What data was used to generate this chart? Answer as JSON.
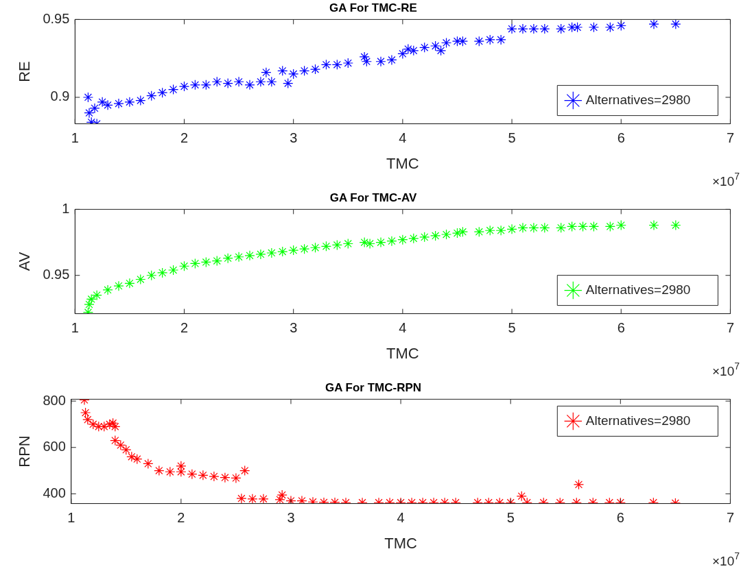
{
  "chart_data": [
    {
      "type": "scatter",
      "title": "GA For TMC-RE",
      "xlabel": "TMC",
      "ylabel": "RE",
      "xlim": [
        1,
        7
      ],
      "xticks": [
        1,
        2,
        3,
        4,
        5,
        6,
        7
      ],
      "ylim": [
        0.883,
        0.95
      ],
      "yticks": [
        0.9,
        0.95
      ],
      "grid": false,
      "legend": "bottom right",
      "marker": "cross",
      "annotations": [
        "×10$^{7}$"
      ],
      "series": [
        {
          "name": "Alternatives=2980",
          "color": "#0000ff",
          "x": [
            1.12,
            1.13,
            1.15,
            1.2,
            1.18,
            1.25,
            1.3,
            1.4,
            1.5,
            1.6,
            1.7,
            1.8,
            1.9,
            2.0,
            2.1,
            2.2,
            2.3,
            2.4,
            2.5,
            2.6,
            2.7,
            2.75,
            2.8,
            2.9,
            2.95,
            3.0,
            3.1,
            3.2,
            3.3,
            3.4,
            3.5,
            3.65,
            3.67,
            3.8,
            3.9,
            4.0,
            4.05,
            4.1,
            4.2,
            4.3,
            4.35,
            4.4,
            4.5,
            4.55,
            4.7,
            4.8,
            4.9,
            5.0,
            5.1,
            5.2,
            5.3,
            5.45,
            5.55,
            5.6,
            5.75,
            5.9,
            6.0,
            6.3,
            6.5
          ],
          "values": [
            0.9,
            0.89,
            0.884,
            0.883,
            0.893,
            0.897,
            0.895,
            0.896,
            0.897,
            0.898,
            0.901,
            0.903,
            0.905,
            0.907,
            0.908,
            0.908,
            0.91,
            0.909,
            0.91,
            0.908,
            0.91,
            0.916,
            0.91,
            0.917,
            0.909,
            0.915,
            0.917,
            0.918,
            0.921,
            0.921,
            0.922,
            0.926,
            0.923,
            0.923,
            0.924,
            0.928,
            0.931,
            0.93,
            0.932,
            0.933,
            0.93,
            0.935,
            0.936,
            0.936,
            0.936,
            0.937,
            0.937,
            0.944,
            0.944,
            0.944,
            0.944,
            0.944,
            0.945,
            0.945,
            0.945,
            0.945,
            0.946,
            0.947,
            0.947
          ]
        }
      ]
    },
    {
      "type": "scatter",
      "title": "GA For TMC-AV",
      "xlabel": "TMC",
      "ylabel": "AV",
      "xlim": [
        1,
        7
      ],
      "xticks": [
        1,
        2,
        3,
        4,
        5,
        6,
        7
      ],
      "ylim": [
        0.921,
        1
      ],
      "yticks": [
        0.95,
        1
      ],
      "grid": false,
      "legend": "bottom right",
      "marker": "cross",
      "annotations": [
        "×10$^{7}$"
      ],
      "series": [
        {
          "name": "Alternatives=2980",
          "color": "#00ff00",
          "x": [
            1.12,
            1.13,
            1.15,
            1.2,
            1.3,
            1.4,
            1.5,
            1.6,
            1.7,
            1.8,
            1.9,
            2.0,
            2.1,
            2.2,
            2.3,
            2.4,
            2.5,
            2.6,
            2.7,
            2.8,
            2.9,
            3.0,
            3.1,
            3.2,
            3.3,
            3.4,
            3.5,
            3.65,
            3.7,
            3.8,
            3.9,
            4.0,
            4.1,
            4.2,
            4.3,
            4.4,
            4.5,
            4.55,
            4.7,
            4.8,
            4.9,
            5.0,
            5.1,
            5.2,
            5.3,
            5.45,
            5.55,
            5.65,
            5.75,
            5.9,
            6.0,
            6.3,
            6.5
          ],
          "values": [
            0.922,
            0.928,
            0.932,
            0.935,
            0.939,
            0.942,
            0.944,
            0.947,
            0.95,
            0.952,
            0.954,
            0.957,
            0.959,
            0.96,
            0.961,
            0.963,
            0.964,
            0.965,
            0.966,
            0.967,
            0.968,
            0.969,
            0.97,
            0.971,
            0.972,
            0.973,
            0.974,
            0.975,
            0.974,
            0.975,
            0.976,
            0.977,
            0.978,
            0.979,
            0.98,
            0.981,
            0.982,
            0.983,
            0.983,
            0.984,
            0.984,
            0.985,
            0.986,
            0.986,
            0.986,
            0.986,
            0.987,
            0.987,
            0.987,
            0.987,
            0.988,
            0.988,
            0.988
          ]
        }
      ]
    },
    {
      "type": "scatter",
      "title": "GA For TMC-RPN",
      "xlabel": "TMC",
      "ylabel": "RPN",
      "xlim": [
        1,
        7
      ],
      "xticks": [
        1,
        2,
        3,
        4,
        5,
        6,
        7
      ],
      "ylim": [
        358,
        808
      ],
      "yticks": [
        400,
        600,
        800
      ],
      "grid": false,
      "legend": "top right",
      "marker": "cross",
      "annotations": [
        "×10$^{7}$"
      ],
      "series": [
        {
          "name": "Alternatives=2980",
          "color": "#ff0000",
          "x": [
            1.12,
            1.13,
            1.15,
            1.2,
            1.25,
            1.3,
            1.35,
            1.38,
            1.4,
            1.4,
            1.45,
            1.5,
            1.55,
            1.6,
            1.7,
            1.8,
            1.9,
            2.0,
            2.0,
            2.1,
            2.2,
            2.3,
            2.4,
            2.5,
            2.58,
            2.55,
            2.65,
            2.75,
            2.9,
            2.92,
            3.0,
            3.1,
            3.2,
            3.3,
            3.4,
            3.5,
            3.65,
            3.8,
            3.9,
            4.0,
            4.1,
            4.2,
            4.3,
            4.4,
            4.5,
            4.7,
            4.8,
            4.9,
            5.0,
            5.1,
            5.15,
            5.3,
            5.45,
            5.6,
            5.62,
            5.75,
            5.9,
            6.0,
            6.3,
            6.5
          ],
          "values": [
            805,
            750,
            720,
            700,
            690,
            690,
            700,
            705,
            690,
            630,
            610,
            590,
            560,
            550,
            530,
            500,
            495,
            520,
            495,
            485,
            480,
            475,
            470,
            468,
            500,
            380,
            378,
            378,
            375,
            395,
            370,
            370,
            365,
            363,
            363,
            362,
            362,
            362,
            362,
            362,
            362,
            362,
            362,
            362,
            362,
            362,
            362,
            362,
            362,
            390,
            362,
            362,
            362,
            362,
            440,
            362,
            362,
            362,
            362,
            360
          ]
        }
      ]
    }
  ]
}
